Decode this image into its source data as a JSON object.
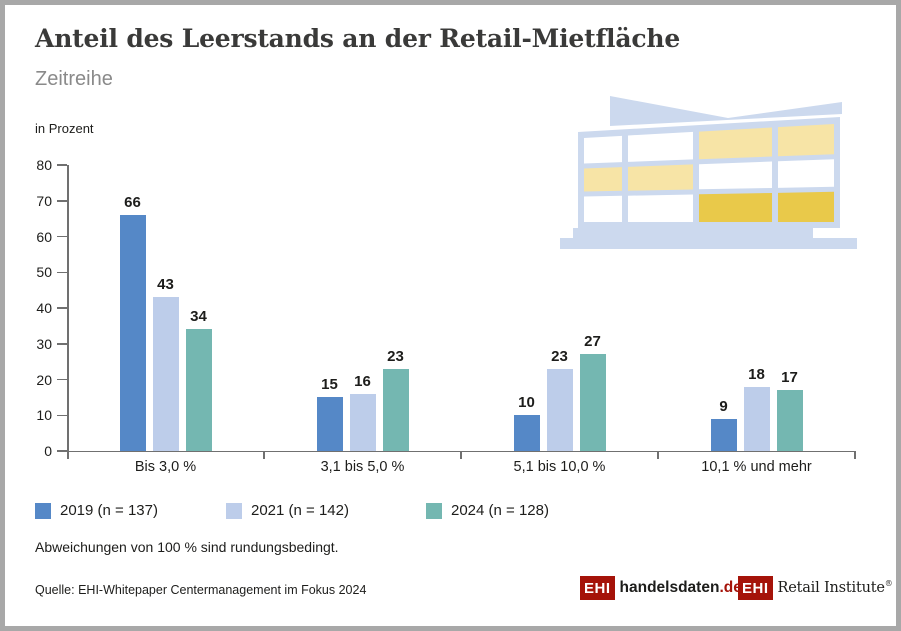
{
  "page": {
    "background": "#ffffff",
    "frame_border_color": "#a8a8a8"
  },
  "header": {
    "title": "Anteil des Leerstands an der Retail-Mietfläche",
    "subtitle": "Zeitreihe"
  },
  "chart_data": {
    "type": "bar",
    "title": "Anteil des Leerstands an der Retail-Mietfläche",
    "subtitle": "Zeitreihe",
    "ylabel": "in Prozent",
    "ylim": [
      0,
      80
    ],
    "ytick_step": 10,
    "grid": false,
    "legend_position": "bottom",
    "categories": [
      "Bis 3,0 %",
      "3,1 bis 5,0 %",
      "5,1 bis 10,0 %",
      "10,1 % und mehr"
    ],
    "series": [
      {
        "name": "2019 (n = 137)",
        "color": "#5588c7",
        "values": [
          66,
          15,
          10,
          9
        ]
      },
      {
        "name": "2021 (n = 142)",
        "color": "#bdcdea",
        "values": [
          43,
          16,
          23,
          18
        ]
      },
      {
        "name": "2024 (n = 128)",
        "color": "#74b7b1",
        "values": [
          34,
          23,
          27,
          17
        ]
      }
    ]
  },
  "legend": {
    "items": [
      {
        "label": "2019 (n = 137)",
        "color": "#5588c7"
      },
      {
        "label": "2021 (n = 142)",
        "color": "#bdcdea"
      },
      {
        "label": "2024 (n = 128)",
        "color": "#74b7b1"
      }
    ]
  },
  "footnote": "Abweichungen von 100 % sind rundungsbedingt.",
  "source": "Quelle: EHI-Whitepaper Centermanagement im Fokus 2024",
  "logos": {
    "handelsdaten": {
      "box": "EHI",
      "name": "handelsdaten",
      "tld": ".de",
      "red": "#a51309"
    },
    "retail_institute": {
      "box": "EHI",
      "name": "Retail Institute",
      "registered": "®"
    }
  },
  "illustration": {
    "name": "shopping-center-building",
    "colors": {
      "frame": "#ccd9ee",
      "pane_light": "#f7e4a6",
      "pane_gold": "#e9c94a",
      "pane_white": "#ffffff"
    }
  }
}
